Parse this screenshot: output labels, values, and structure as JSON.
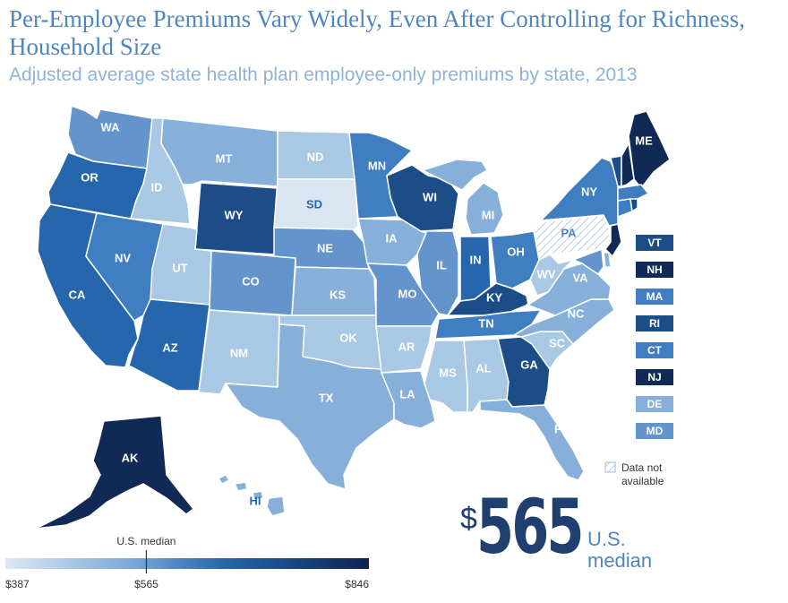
{
  "title": "Per-Employee Premiums Vary Widely, Even After Controlling for Richness, Household Size",
  "subtitle": "Adjusted average state health plan employee-only premiums by state, 2013",
  "colors": {
    "c1": "#d9e5f1",
    "c2": "#a9c8e4",
    "c3": "#86b0da",
    "c4": "#6394cb",
    "c5": "#3f7ec1",
    "c6": "#2566ad",
    "c7": "#1d4d86",
    "c8": "#102a55"
  },
  "states": [
    {
      "id": "WA",
      "label": "WA",
      "level": "c4"
    },
    {
      "id": "OR",
      "label": "OR",
      "level": "c6"
    },
    {
      "id": "CA",
      "label": "CA",
      "level": "c6"
    },
    {
      "id": "ID",
      "label": "ID",
      "level": "c2"
    },
    {
      "id": "NV",
      "label": "NV",
      "level": "c5"
    },
    {
      "id": "MT",
      "label": "MT",
      "level": "c3"
    },
    {
      "id": "WY",
      "label": "WY",
      "level": "c7"
    },
    {
      "id": "UT",
      "label": "UT",
      "level": "c2"
    },
    {
      "id": "AZ",
      "label": "AZ",
      "level": "c6"
    },
    {
      "id": "CO",
      "label": "CO",
      "level": "c4"
    },
    {
      "id": "NM",
      "label": "NM",
      "level": "c2"
    },
    {
      "id": "ND",
      "label": "ND",
      "level": "c2"
    },
    {
      "id": "SD",
      "label": "SD",
      "level": "c1"
    },
    {
      "id": "NE",
      "label": "NE",
      "level": "c4"
    },
    {
      "id": "KS",
      "label": "KS",
      "level": "c3"
    },
    {
      "id": "OK",
      "label": "OK",
      "level": "c2"
    },
    {
      "id": "TX",
      "label": "TX",
      "level": "c3"
    },
    {
      "id": "MN",
      "label": "MN",
      "level": "c5"
    },
    {
      "id": "IA",
      "label": "IA",
      "level": "c3"
    },
    {
      "id": "MO",
      "label": "MO",
      "level": "c4"
    },
    {
      "id": "AR",
      "label": "AR",
      "level": "c2"
    },
    {
      "id": "LA",
      "label": "LA",
      "level": "c3"
    },
    {
      "id": "WI",
      "label": "WI",
      "level": "c7"
    },
    {
      "id": "IL",
      "label": "IL",
      "level": "c4"
    },
    {
      "id": "MI",
      "label": "MI",
      "level": "c3"
    },
    {
      "id": "IN",
      "label": "IN",
      "level": "c6"
    },
    {
      "id": "OH",
      "label": "OH",
      "level": "c5"
    },
    {
      "id": "KY",
      "label": "KY",
      "level": "c7"
    },
    {
      "id": "TN",
      "label": "TN",
      "level": "c5"
    },
    {
      "id": "MS",
      "label": "MS",
      "level": "c2"
    },
    {
      "id": "AL",
      "label": "AL",
      "level": "c2"
    },
    {
      "id": "GA",
      "label": "GA",
      "level": "c7"
    },
    {
      "id": "FL",
      "label": "FL",
      "level": "c3"
    },
    {
      "id": "SC",
      "label": "SC",
      "level": "c2"
    },
    {
      "id": "NC",
      "label": "NC",
      "level": "c3"
    },
    {
      "id": "VA",
      "label": "VA",
      "level": "c3"
    },
    {
      "id": "WV",
      "label": "WV",
      "level": "c2"
    },
    {
      "id": "PA",
      "label": "PA",
      "level": "na"
    },
    {
      "id": "NY",
      "label": "NY",
      "level": "c5"
    },
    {
      "id": "ME",
      "label": "ME",
      "level": "c8"
    },
    {
      "id": "AK",
      "label": "AK",
      "level": "c8"
    },
    {
      "id": "HI",
      "label": "HI",
      "level": "c3"
    }
  ],
  "small_states": [
    {
      "id": "VT",
      "label": "VT",
      "level": "c7"
    },
    {
      "id": "NH",
      "label": "NH",
      "level": "c8"
    },
    {
      "id": "MA",
      "label": "MA",
      "level": "c5"
    },
    {
      "id": "RI",
      "label": "RI",
      "level": "c7"
    },
    {
      "id": "CT",
      "label": "CT",
      "level": "c5"
    },
    {
      "id": "NJ",
      "label": "NJ",
      "level": "c8"
    },
    {
      "id": "DE",
      "label": "DE",
      "level": "c3"
    },
    {
      "id": "MD",
      "label": "MD",
      "level": "c4"
    }
  ],
  "legend": {
    "min_label": "$387",
    "median_label": "$565",
    "max_label": "$846",
    "median_caption": "U.S. median",
    "min_value": 387,
    "median_value": 565,
    "max_value": 846,
    "na_label_line1": "Data not",
    "na_label_line2": "available"
  },
  "highlight": {
    "dollar": "$",
    "value": "565",
    "caption_line1": "U.S.",
    "caption_line2": "median"
  }
}
